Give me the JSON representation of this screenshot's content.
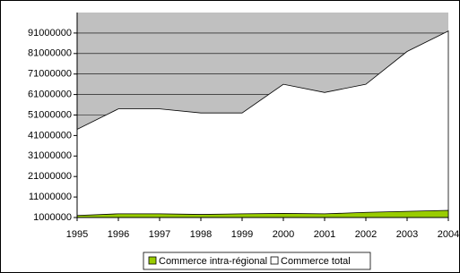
{
  "chart_data": {
    "type": "area",
    "x": [
      1995,
      1996,
      1997,
      1998,
      1999,
      2000,
      2001,
      2002,
      2003,
      2004
    ],
    "xlim": [
      1995,
      2004
    ],
    "xticks": [
      1995,
      1996,
      1997,
      1998,
      1999,
      2000,
      2001,
      2002,
      2003,
      2004
    ],
    "ylim": [
      1000000,
      101000000
    ],
    "yticks": [
      1000000,
      11000000,
      21000000,
      31000000,
      41000000,
      51000000,
      61000000,
      71000000,
      81000000,
      91000000
    ],
    "grid": true,
    "legend": "bottom",
    "series": [
      {
        "name": "Commerce intra-régional",
        "color": "#99cc00",
        "values": [
          2000000,
          2800000,
          2800000,
          2500000,
          2800000,
          3000000,
          2800000,
          3500000,
          4000000,
          4500000
        ]
      },
      {
        "name": "Commerce total",
        "color": "#ffffff",
        "values": [
          44000000,
          54000000,
          54000000,
          52000000,
          52000000,
          66000000,
          62000000,
          66000000,
          82000000,
          92000000
        ]
      }
    ]
  }
}
